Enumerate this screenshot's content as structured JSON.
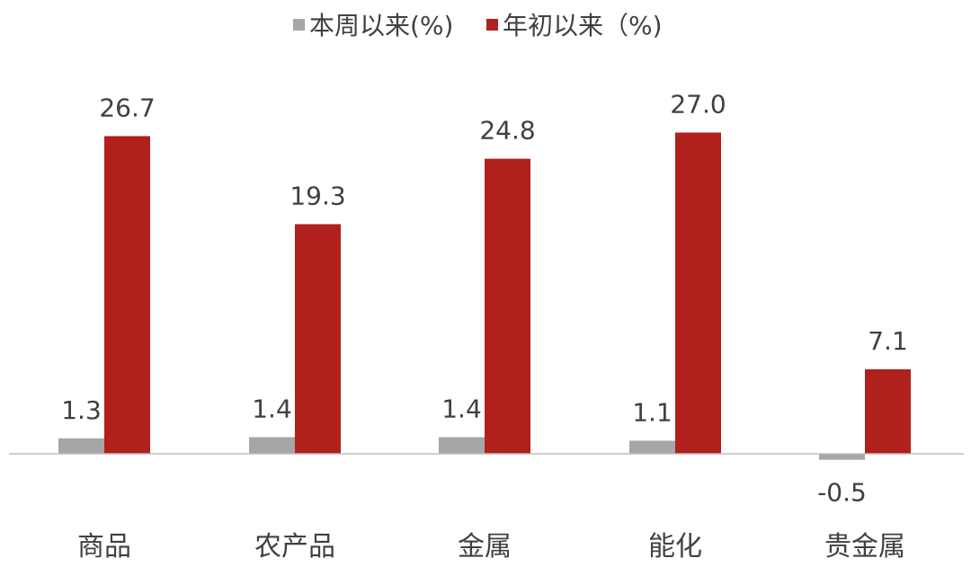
{
  "chart_data": {
    "type": "bar",
    "categories": [
      "商品",
      "农产品",
      "金属",
      "能化",
      "贵金属"
    ],
    "series": [
      {
        "name": "本周以来(%)",
        "color": "#a6a6a6",
        "values": [
          1.3,
          1.4,
          1.4,
          1.1,
          -0.5
        ]
      },
      {
        "name": "年初以来（%)",
        "color": "#b0201c",
        "values": [
          26.7,
          19.3,
          24.8,
          27.0,
          7.1
        ]
      }
    ],
    "ylim": [
      -1,
      28
    ],
    "grid": false,
    "legend": "top-center"
  }
}
